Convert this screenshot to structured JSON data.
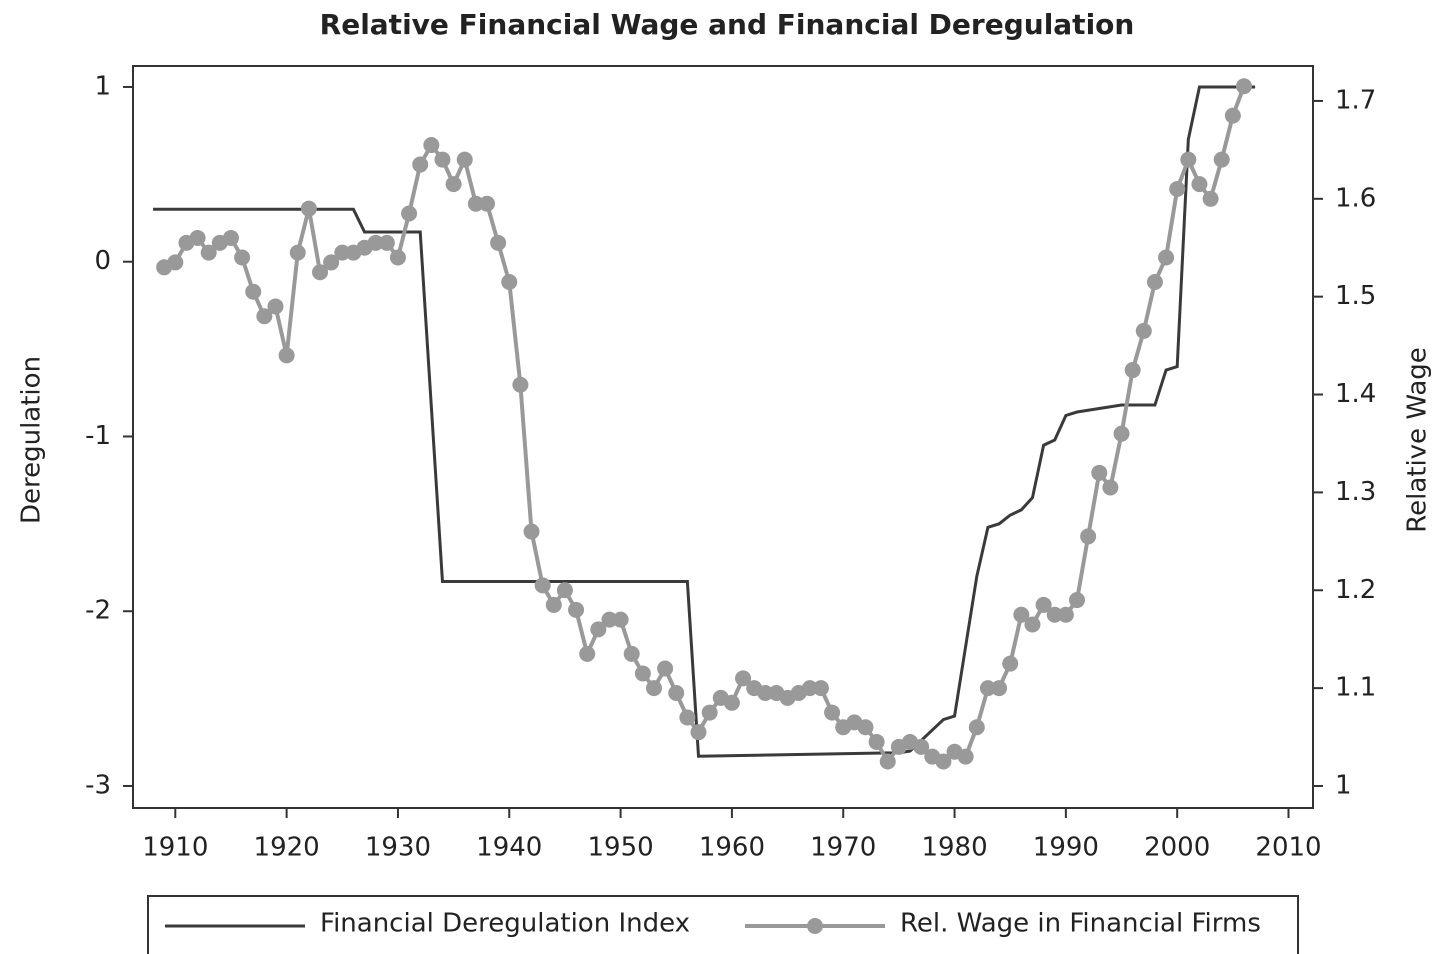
{
  "chart_data": {
    "type": "line",
    "title": "Relative Financial  Wage and  Financial Deregulation",
    "ylabel": "Deregulation",
    "y2label": "Relative Wage",
    "xlim": [
      1906.2,
      2012.2
    ],
    "xticks": [
      1910,
      1920,
      1930,
      1940,
      1950,
      1960,
      1970,
      1980,
      1990,
      2000,
      2010
    ],
    "ylim": [
      -3.126,
      1.12
    ],
    "yticks": [
      -3,
      -2,
      -1,
      0,
      1
    ],
    "y2lim": [
      0.9775,
      1.7357
    ],
    "y2ticks": [
      1,
      1.1,
      1.2,
      1.3,
      1.4,
      1.5,
      1.6,
      1.7
    ],
    "legend": "bottom",
    "series": [
      {
        "name": "Financial Deregulation Index",
        "color": "#3a3a3a",
        "axis": "y",
        "markers": false,
        "x": [
          1908,
          1926,
          1927,
          1932,
          1934,
          1956,
          1957,
          1975,
          1976,
          1979,
          1980,
          1981,
          1982,
          1983,
          1984,
          1985,
          1986,
          1987,
          1988,
          1989,
          1990,
          1991,
          1995,
          1998,
          1999,
          2000,
          2001,
          2002,
          2007
        ],
        "values": [
          0.3,
          0.3,
          0.17,
          0.17,
          -1.83,
          -1.83,
          -2.83,
          -2.81,
          -2.8,
          -2.62,
          -2.6,
          -2.2,
          -1.8,
          -1.52,
          -1.5,
          -1.45,
          -1.42,
          -1.35,
          -1.05,
          -1.02,
          -0.88,
          -0.86,
          -0.82,
          -0.82,
          -0.62,
          -0.6,
          0.7,
          1.0,
          1.0
        ]
      },
      {
        "name": "Rel. Wage in Financial Firms",
        "color": "#999999",
        "axis": "y2",
        "markers": true,
        "x": [
          1909,
          1910,
          1911,
          1912,
          1913,
          1914,
          1915,
          1916,
          1917,
          1918,
          1919,
          1920,
          1921,
          1922,
          1923,
          1924,
          1925,
          1926,
          1927,
          1928,
          1929,
          1930,
          1931,
          1932,
          1933,
          1934,
          1935,
          1936,
          1937,
          1938,
          1939,
          1940,
          1941,
          1942,
          1943,
          1944,
          1945,
          1946,
          1947,
          1948,
          1949,
          1950,
          1951,
          1952,
          1953,
          1954,
          1955,
          1956,
          1957,
          1958,
          1959,
          1960,
          1961,
          1962,
          1963,
          1964,
          1965,
          1966,
          1967,
          1968,
          1969,
          1970,
          1971,
          1972,
          1973,
          1974,
          1975,
          1976,
          1977,
          1978,
          1979,
          1980,
          1981,
          1982,
          1983,
          1984,
          1985,
          1986,
          1987,
          1988,
          1989,
          1990,
          1991,
          1992,
          1993,
          1994,
          1995,
          1996,
          1997,
          1998,
          1999,
          2000,
          2001,
          2002,
          2003,
          2004,
          2005,
          2006
        ],
        "values": [
          1.53,
          1.535,
          1.555,
          1.56,
          1.545,
          1.555,
          1.56,
          1.54,
          1.505,
          1.48,
          1.49,
          1.44,
          1.545,
          1.59,
          1.525,
          1.535,
          1.545,
          1.545,
          1.55,
          1.555,
          1.555,
          1.54,
          1.585,
          1.635,
          1.655,
          1.64,
          1.615,
          1.64,
          1.595,
          1.595,
          1.555,
          1.515,
          1.41,
          1.26,
          1.205,
          1.185,
          1.2,
          1.18,
          1.135,
          1.16,
          1.17,
          1.17,
          1.135,
          1.115,
          1.1,
          1.12,
          1.095,
          1.07,
          1.055,
          1.075,
          1.09,
          1.085,
          1.11,
          1.1,
          1.095,
          1.095,
          1.09,
          1.095,
          1.1,
          1.1,
          1.075,
          1.06,
          1.065,
          1.06,
          1.045,
          1.025,
          1.04,
          1.045,
          1.04,
          1.03,
          1.025,
          1.035,
          1.03,
          1.06,
          1.1,
          1.1,
          1.125,
          1.175,
          1.165,
          1.185,
          1.175,
          1.175,
          1.19,
          1.255,
          1.32,
          1.305,
          1.36,
          1.425,
          1.465,
          1.515,
          1.54,
          1.61,
          1.64,
          1.615,
          1.6,
          1.64,
          1.685,
          1.715
        ]
      }
    ]
  }
}
